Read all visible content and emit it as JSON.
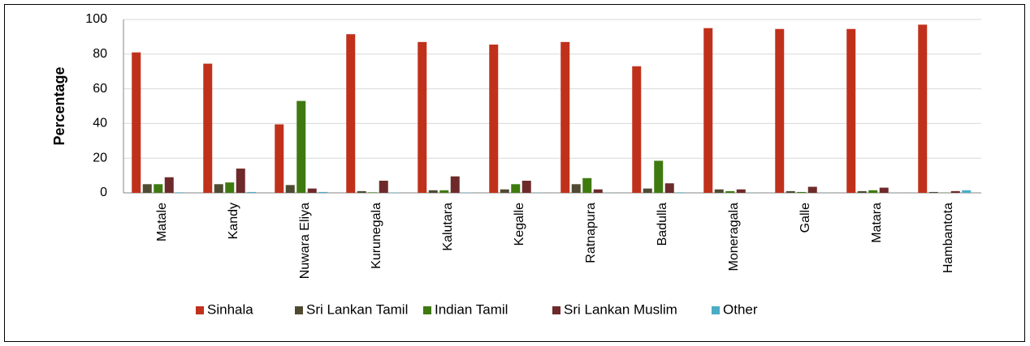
{
  "chart_data": {
    "type": "bar",
    "ylabel": "Percentage",
    "categories": [
      "Matale",
      "Kandy",
      "Nuwara Eliya",
      "Kurunegala",
      "Kalutara",
      "Kegalle",
      "Ratnapura",
      "Badulla",
      "Moneragala",
      "Galle",
      "Matara",
      "Hambantota"
    ],
    "series": [
      {
        "name": "Sinhala",
        "color": "#c0311b",
        "values": [
          81,
          74.5,
          39.5,
          91.5,
          87,
          85.5,
          87,
          73,
          95,
          94.5,
          94.5,
          97
        ]
      },
      {
        "name": "Sri Lankan Tamil",
        "color": "#4f4a32",
        "values": [
          5,
          5,
          4.5,
          1,
          1.5,
          2,
          5,
          2.5,
          2,
          1,
          1,
          0.5
        ]
      },
      {
        "name": "Indian Tamil",
        "color": "#3f7a10",
        "values": [
          5,
          6,
          53,
          0.3,
          1.5,
          5,
          8.5,
          18.5,
          1,
          0.5,
          1.5,
          0.1
        ]
      },
      {
        "name": "Sri Lankan Muslim",
        "color": "#6e2a2a",
        "values": [
          9,
          14,
          2.5,
          7,
          9.5,
          7,
          2,
          5.5,
          2,
          3.5,
          3,
          1
        ]
      },
      {
        "name": "Other",
        "color": "#4bacc6",
        "values": [
          0.3,
          0.5,
          0.5,
          0.2,
          0.2,
          0.1,
          0.1,
          0.3,
          0.1,
          0.1,
          0.1,
          1.5
        ]
      }
    ],
    "ylim": [
      0,
      100
    ],
    "yticks": [
      0,
      20,
      40,
      60,
      80,
      100
    ],
    "grid": true,
    "legend": "bottom"
  }
}
